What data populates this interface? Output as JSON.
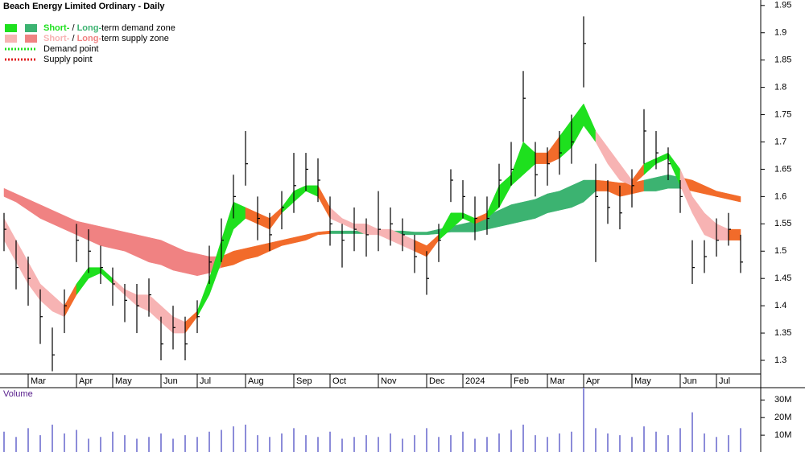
{
  "chart_data": {
    "type": "ohlc",
    "title": "Beach Energy Limited Ordinary - Daily",
    "legend": [
      {
        "parts": [
          "Short-",
          " / ",
          "Long-",
          "term demand zone"
        ],
        "colors": [
          "#1ee01e",
          "#3cb371"
        ]
      },
      {
        "parts": [
          "Short-",
          " / ",
          "Long-",
          "term supply zone"
        ],
        "colors": [
          "#f7b3b3",
          "#f08282"
        ]
      },
      {
        "parts": [
          "Demand point"
        ],
        "colors": [
          "#1ee01e"
        ]
      },
      {
        "parts": [
          "Supply point"
        ],
        "colors": [
          "#e02020"
        ]
      }
    ],
    "categories": [
      null,
      null,
      "Mar",
      null,
      null,
      null,
      "Apr",
      null,
      null,
      "May",
      null,
      null,
      null,
      "Jun",
      null,
      null,
      "Jul",
      null,
      null,
      null,
      "Aug",
      null,
      null,
      null,
      "Sep",
      null,
      null,
      "Oct",
      null,
      null,
      null,
      "Nov",
      null,
      null,
      null,
      "Dec",
      null,
      null,
      "2024",
      null,
      null,
      null,
      "Feb",
      null,
      null,
      "Mar",
      null,
      null,
      "Apr",
      null,
      null,
      null,
      "May",
      null,
      null,
      null,
      "Jun",
      null,
      null,
      "Jul",
      null,
      null
    ],
    "high": [
      1.57,
      1.52,
      1.49,
      1.43,
      1.36,
      1.43,
      1.55,
      1.54,
      1.51,
      1.47,
      1.44,
      1.44,
      1.45,
      1.38,
      1.4,
      1.38,
      1.41,
      1.51,
      1.56,
      1.64,
      1.72,
      1.6,
      1.57,
      1.61,
      1.68,
      1.68,
      1.67,
      1.6,
      1.55,
      1.58,
      1.56,
      1.61,
      1.58,
      1.56,
      1.53,
      1.5,
      1.55,
      1.65,
      1.63,
      1.6,
      1.6,
      1.66,
      1.7,
      1.83,
      1.7,
      1.69,
      1.72,
      1.75,
      1.93,
      1.66,
      1.63,
      1.62,
      1.65,
      1.76,
      1.72,
      1.69,
      1.63,
      1.52,
      1.52,
      1.56,
      1.57,
      1.53
    ],
    "low": [
      1.5,
      1.43,
      1.4,
      1.33,
      1.28,
      1.35,
      1.48,
      1.46,
      1.44,
      1.4,
      1.37,
      1.35,
      1.38,
      1.3,
      1.32,
      1.3,
      1.35,
      1.44,
      1.48,
      1.56,
      1.62,
      1.52,
      1.5,
      1.54,
      1.57,
      1.61,
      1.59,
      1.51,
      1.47,
      1.5,
      1.49,
      1.5,
      1.51,
      1.5,
      1.46,
      1.42,
      1.48,
      1.59,
      1.56,
      1.52,
      1.53,
      1.58,
      1.62,
      1.7,
      1.6,
      1.62,
      1.64,
      1.66,
      1.8,
      1.48,
      1.55,
      1.54,
      1.58,
      1.66,
      1.65,
      1.63,
      1.57,
      1.44,
      1.46,
      1.49,
      1.51,
      1.46
    ],
    "close": [
      1.54,
      1.47,
      1.45,
      1.38,
      1.31,
      1.4,
      1.52,
      1.5,
      1.47,
      1.44,
      1.41,
      1.4,
      1.42,
      1.33,
      1.36,
      1.33,
      1.38,
      1.48,
      1.52,
      1.6,
      1.66,
      1.56,
      1.53,
      1.58,
      1.62,
      1.65,
      1.63,
      1.55,
      1.52,
      1.54,
      1.53,
      1.54,
      1.55,
      1.53,
      1.49,
      1.45,
      1.52,
      1.63,
      1.6,
      1.56,
      1.56,
      1.63,
      1.65,
      1.78,
      1.64,
      1.66,
      1.68,
      1.7,
      1.88,
      1.6,
      1.58,
      1.57,
      1.62,
      1.72,
      1.68,
      1.66,
      1.6,
      1.47,
      1.49,
      1.52,
      1.54,
      1.48
    ],
    "bar_color": "#000000",
    "zones": [
      {
        "upper": [
          1.615,
          1.605,
          1.595,
          1.585,
          1.575,
          1.565,
          1.555,
          1.55,
          1.545,
          1.54,
          1.535,
          1.53,
          1.525,
          1.52,
          1.51,
          1.5,
          1.495,
          1.49,
          1.49,
          1.5,
          1.505,
          1.51,
          1.515,
          1.52,
          1.525,
          1.53,
          1.535,
          1.537,
          1.537,
          1.537,
          1.537,
          1.537,
          1.537,
          1.537,
          1.535,
          1.535,
          1.54,
          1.545,
          1.55,
          1.555,
          1.565,
          1.575,
          1.585,
          1.59,
          1.595,
          1.605,
          1.61,
          1.62,
          1.63,
          1.63,
          1.628,
          1.625,
          1.625,
          1.63,
          1.635,
          1.64,
          1.635,
          1.63,
          1.62,
          1.61,
          1.605,
          1.6
        ],
        "lower": [
          1.6,
          1.59,
          1.575,
          1.56,
          1.55,
          1.54,
          1.53,
          1.52,
          1.51,
          1.505,
          1.5,
          1.49,
          1.48,
          1.475,
          1.465,
          1.46,
          1.455,
          1.46,
          1.47,
          1.475,
          1.485,
          1.49,
          1.5,
          1.51,
          1.515,
          1.52,
          1.53,
          1.532,
          1.532,
          1.532,
          1.532,
          1.532,
          1.532,
          1.53,
          1.53,
          1.53,
          1.532,
          1.535,
          1.535,
          1.535,
          1.54,
          1.545,
          1.55,
          1.555,
          1.56,
          1.57,
          1.575,
          1.58,
          1.59,
          1.61,
          1.61,
          1.6,
          1.605,
          1.61,
          1.61,
          1.615,
          1.615,
          1.61,
          1.605,
          1.6,
          1.595,
          1.59
        ],
        "colors": [
          "#f08282",
          "#f08282",
          "#f08282",
          "#f08282",
          "#f08282",
          "#f08282",
          "#f08282",
          "#f08282",
          "#f08282",
          "#f08282",
          "#f08282",
          "#f08282",
          "#f08282",
          "#f08282",
          "#f08282",
          "#f08282",
          "#f08282",
          "#f08282",
          "#f26b2a",
          "#f26b2a",
          "#f26b2a",
          "#f26b2a",
          "#f26b2a",
          "#f26b2a",
          "#f26b2a",
          "#f26b2a",
          "#f26b2a",
          "#3cb371",
          "#3cb371",
          "#3cb371",
          "#3cb371",
          "#3cb371",
          "#3cb371",
          "#3cb371",
          "#3cb371",
          "#3cb371",
          "#3cb371",
          "#3cb371",
          "#3cb371",
          "#3cb371",
          "#3cb371",
          "#3cb371",
          "#3cb371",
          "#3cb371",
          "#3cb371",
          "#3cb371",
          "#3cb371",
          "#3cb371",
          "#3cb371",
          "#f26b2a",
          "#f26b2a",
          "#f26b2a",
          "#f26b2a",
          "#3cb371",
          "#3cb371",
          "#3cb371",
          "#f26b2a",
          "#f26b2a",
          "#f26b2a",
          "#f26b2a",
          "#f26b2a",
          "#f26b2a"
        ]
      },
      {
        "upper": [
          1.56,
          1.52,
          1.48,
          1.44,
          1.42,
          1.4,
          1.44,
          1.47,
          1.47,
          1.45,
          1.43,
          1.42,
          1.42,
          1.4,
          1.38,
          1.37,
          1.39,
          1.45,
          1.52,
          1.59,
          1.58,
          1.57,
          1.56,
          1.58,
          1.61,
          1.62,
          1.62,
          1.58,
          1.56,
          1.55,
          1.55,
          1.54,
          1.54,
          1.53,
          1.52,
          1.51,
          1.53,
          1.57,
          1.57,
          1.56,
          1.57,
          1.62,
          1.64,
          1.7,
          1.68,
          1.68,
          1.71,
          1.74,
          1.77,
          1.72,
          1.69,
          1.66,
          1.63,
          1.66,
          1.67,
          1.68,
          1.65,
          1.6,
          1.57,
          1.55,
          1.54,
          1.54
        ],
        "lower": [
          1.52,
          1.48,
          1.44,
          1.41,
          1.39,
          1.38,
          1.42,
          1.45,
          1.46,
          1.44,
          1.42,
          1.4,
          1.39,
          1.37,
          1.35,
          1.35,
          1.38,
          1.42,
          1.48,
          1.54,
          1.56,
          1.55,
          1.54,
          1.57,
          1.59,
          1.61,
          1.6,
          1.56,
          1.55,
          1.54,
          1.53,
          1.53,
          1.52,
          1.51,
          1.5,
          1.49,
          1.52,
          1.54,
          1.56,
          1.55,
          1.56,
          1.58,
          1.62,
          1.64,
          1.66,
          1.66,
          1.67,
          1.69,
          1.73,
          1.7,
          1.66,
          1.63,
          1.62,
          1.64,
          1.66,
          1.67,
          1.62,
          1.57,
          1.53,
          1.52,
          1.52,
          1.52
        ],
        "colors": [
          "#f7b3b3",
          "#f7b3b3",
          "#f7b3b3",
          "#f7b3b3",
          "#f7b3b3",
          "#f26b2a",
          "#1ee01e",
          "#1ee01e",
          "#1ee01e",
          "#f7b3b3",
          "#f7b3b3",
          "#f7b3b3",
          "#f7b3b3",
          "#f7b3b3",
          "#f7b3b3",
          "#f26b2a",
          "#1ee01e",
          "#1ee01e",
          "#1ee01e",
          "#1ee01e",
          "#f26b2a",
          "#f26b2a",
          "#f26b2a",
          "#1ee01e",
          "#1ee01e",
          "#1ee01e",
          "#f26b2a",
          "#f7b3b3",
          "#f7b3b3",
          "#f7b3b3",
          "#f7b3b3",
          "#f7b3b3",
          "#f7b3b3",
          "#f7b3b3",
          "#f26b2a",
          "#f26b2a",
          "#1ee01e",
          "#1ee01e",
          "#1ee01e",
          "#f26b2a",
          "#1ee01e",
          "#1ee01e",
          "#1ee01e",
          "#1ee01e",
          "#f26b2a",
          "#f26b2a",
          "#1ee01e",
          "#1ee01e",
          "#1ee01e",
          "#f7b3b3",
          "#f7b3b3",
          "#f7b3b3",
          "#f26b2a",
          "#1ee01e",
          "#1ee01e",
          "#1ee01e",
          "#f7b3b3",
          "#f7b3b3",
          "#f7b3b3",
          "#f7b3b3",
          "#f26b2a",
          "#f26b2a"
        ]
      }
    ],
    "ylim": [
      1.275,
      1.96
    ],
    "yticks": [
      1.3,
      1.35,
      1.4,
      1.45,
      1.5,
      1.55,
      1.6,
      1.65,
      1.7,
      1.75,
      1.8,
      1.85,
      1.9,
      1.95
    ],
    "volume": {
      "label": "Volume",
      "color": "#8c8cd9",
      "values": [
        12,
        9,
        14,
        10,
        16,
        11,
        13,
        8,
        9,
        12,
        10,
        8,
        9,
        11,
        8,
        10,
        9,
        12,
        13,
        15,
        16,
        10,
        9,
        11,
        14,
        10,
        9,
        12,
        8,
        9,
        10,
        9,
        11,
        8,
        10,
        14,
        9,
        10,
        12,
        8,
        9,
        11,
        13,
        16,
        10,
        9,
        11,
        12,
        37,
        14,
        11,
        10,
        9,
        15,
        12,
        10,
        14,
        23,
        11,
        9,
        10,
        14
      ],
      "ylim": [
        0,
        37
      ],
      "yticks": [
        {
          "value": 10,
          "label": "10M"
        },
        {
          "value": 20,
          "label": "20M"
        },
        {
          "value": 30,
          "label": "30M"
        }
      ]
    }
  }
}
